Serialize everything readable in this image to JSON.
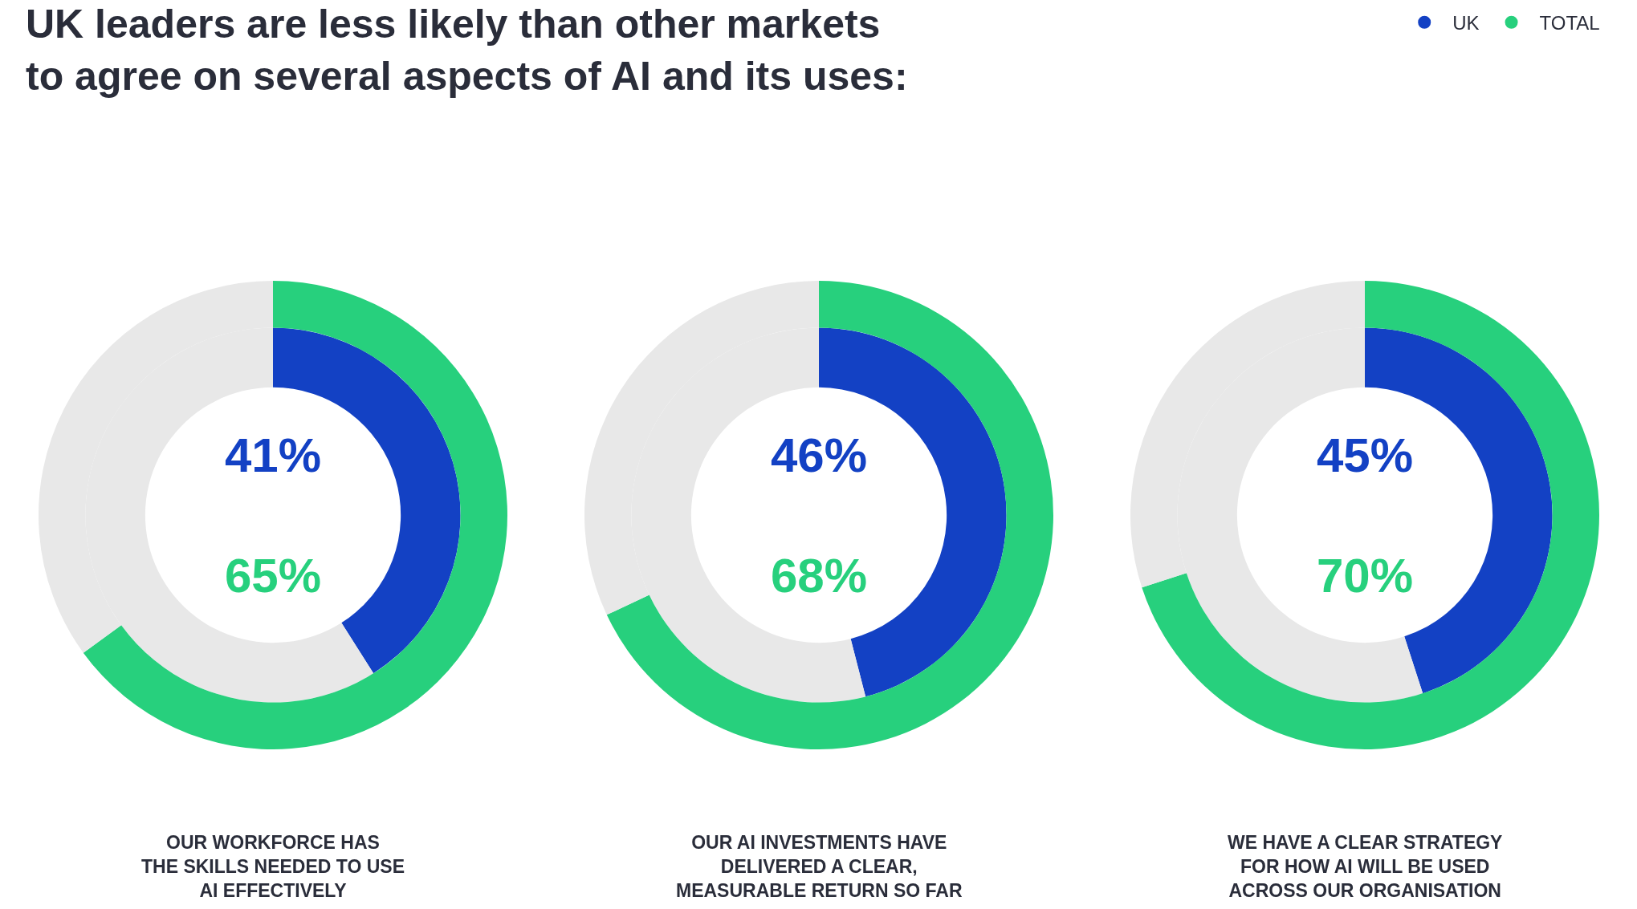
{
  "chart_data": [
    {
      "type": "donut",
      "title": "UK leaders are less likely than other markets\nto agree on several aspects of AI and its uses:",
      "legend": "top right",
      "categories": [
        null,
        null
      ],
      "annotations": [
        "OUR WORKFORCE HAS\nTHE SKILLS NEEDED TO USE\nAI EFFECTIVELY"
      ],
      "series": [
        {
          "name": "UK",
          "color": "#1341c4",
          "colors": [
            "#1341c4",
            "#e8e8e8"
          ],
          "values": [
            41,
            59
          ],
          "value_labels": [
            "41%",
            null
          ]
        },
        {
          "name": "TOTAL",
          "color": "#27d07d",
          "colors": [
            "#27d07d",
            "#e8e8e8"
          ],
          "values": [
            65,
            35
          ],
          "value_labels": [
            "65%",
            null
          ]
        }
      ]
    },
    {
      "type": "donut",
      "legend": "top right",
      "categories": [
        null,
        null
      ],
      "annotations": [
        "OUR AI INVESTMENTS HAVE\nDELIVERED A CLEAR,\nMEASURABLE RETURN SO FAR"
      ],
      "series": [
        {
          "name": "UK",
          "color": "#1341c4",
          "colors": [
            "#1341c4",
            "#e8e8e8"
          ],
          "values": [
            46,
            54
          ],
          "value_labels": [
            "46%",
            null
          ]
        },
        {
          "name": "TOTAL",
          "color": "#27d07d",
          "colors": [
            "#27d07d",
            "#e8e8e8"
          ],
          "values": [
            68,
            32
          ],
          "value_labels": [
            "68%",
            null
          ]
        }
      ]
    },
    {
      "type": "donut",
      "legend": "top right",
      "categories": [
        null,
        null
      ],
      "annotations": [
        "WE HAVE A CLEAR STRATEGY\nFOR HOW AI WILL BE USED\nACROSS OUR ORGANISATION"
      ],
      "series": [
        {
          "name": "UK",
          "color": "#1341c4",
          "colors": [
            "#1341c4",
            "#e8e8e8"
          ],
          "values": [
            45,
            55
          ],
          "value_labels": [
            "45%",
            null
          ]
        },
        {
          "name": "TOTAL",
          "color": "#27d07d",
          "colors": [
            "#27d07d",
            "#e8e8e8"
          ],
          "values": [
            70,
            30
          ],
          "value_labels": [
            "70%",
            null
          ]
        }
      ]
    }
  ]
}
